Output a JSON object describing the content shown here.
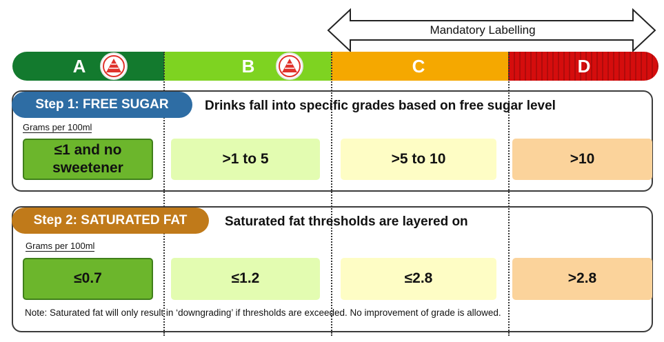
{
  "mandatory_label": "Mandatory Labelling",
  "grades": [
    "A",
    "B",
    "C",
    "D"
  ],
  "colors": {
    "grade_a": "#137a2e",
    "grade_b": "#7ed321",
    "grade_c": "#f5a800",
    "grade_d": "#d50d0d",
    "step1_pill": "#2e6da4",
    "step2_pill": "#c07a1a"
  },
  "step1": {
    "pill": "Step 1: FREE SUGAR",
    "title": "Drinks fall into specific grades based on free sugar level",
    "unit": "Grams per 100ml",
    "values": [
      "≤1 and no sweetener",
      ">1 to 5",
      ">5 to 10",
      ">10"
    ]
  },
  "step2": {
    "pill": "Step 2: SATURATED FAT",
    "title": "Saturated fat thresholds are layered on",
    "unit": "Grams per 100ml",
    "values": [
      "≤0.7",
      "≤1.2",
      "≤2.8",
      ">2.8"
    ]
  },
  "note": "Note: Saturated fat will only result in ‘downgrading’ if thresholds are exceeded.  No improvement of grade is allowed.",
  "icons": {
    "grade_logo": "healthier-choice-pyramid-icon"
  }
}
